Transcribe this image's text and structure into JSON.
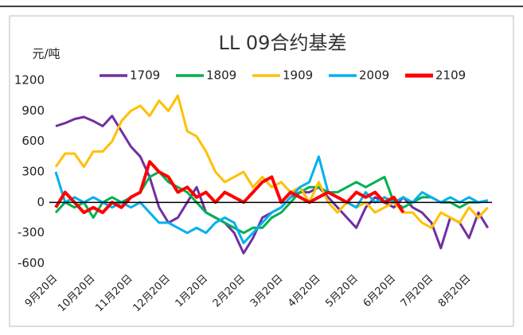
{
  "chart_data": {
    "type": "line",
    "title": "LL 09合约基差",
    "y_axis_label": "元/吨",
    "categories": [
      "9月20日",
      null,
      null,
      null,
      "10月20日",
      null,
      null,
      null,
      "11月20日",
      null,
      null,
      null,
      "12月20日",
      null,
      null,
      null,
      "1月20日",
      null,
      null,
      null,
      "2月20日",
      null,
      null,
      null,
      "3月20日",
      null,
      null,
      null,
      "4月20日",
      null,
      null,
      null,
      "5月20日",
      null,
      null,
      null,
      "6月20日",
      null,
      null,
      null,
      "7月20日",
      null,
      null,
      null,
      "8月20日",
      null,
      null
    ],
    "ylim": [
      -600,
      1200
    ],
    "yticks": [
      -600,
      -300,
      0,
      300,
      600,
      900,
      1200
    ],
    "grid": false,
    "legend": "top",
    "series": [
      {
        "name": "1709",
        "color": "#7030a0",
        "values": [
          750,
          780,
          820,
          840,
          800,
          750,
          850,
          700,
          550,
          450,
          250,
          -50,
          -200,
          -150,
          0,
          150,
          -100,
          -150,
          -200,
          -300,
          -500,
          -350,
          -150,
          -100,
          -50,
          50,
          100,
          100,
          150,
          50,
          -50,
          -150,
          -250,
          -50,
          50,
          0,
          -50,
          50,
          -50,
          -100,
          -200,
          -450,
          -150,
          -200,
          -350,
          -100,
          -250
        ]
      },
      {
        "name": "1809",
        "color": "#00b050",
        "values": [
          -100,
          0,
          -50,
          0,
          -150,
          0,
          50,
          0,
          50,
          100,
          250,
          300,
          200,
          150,
          100,
          0,
          -100,
          -150,
          -200,
          -250,
          -300,
          -250,
          -250,
          -150,
          -100,
          0,
          100,
          150,
          150,
          100,
          100,
          150,
          200,
          150,
          200,
          250,
          0,
          -50,
          0,
          50,
          50,
          0,
          0,
          -50,
          0,
          0,
          20
        ]
      },
      {
        "name": "1909",
        "color": "#ffc000",
        "values": [
          350,
          480,
          480,
          350,
          500,
          500,
          600,
          800,
          900,
          950,
          850,
          1000,
          900,
          1050,
          700,
          650,
          500,
          300,
          200,
          250,
          300,
          150,
          250,
          150,
          200,
          100,
          150,
          0,
          200,
          0,
          -100,
          0,
          -50,
          0,
          -100,
          -50,
          0,
          -100,
          -100,
          -200,
          -250,
          -100,
          -150,
          -200,
          -50,
          -150,
          -50
        ]
      },
      {
        "name": "2009",
        "color": "#00b0f0",
        "values": [
          300,
          0,
          50,
          0,
          50,
          0,
          -50,
          0,
          -50,
          0,
          -100,
          -200,
          -200,
          -250,
          -300,
          -250,
          -300,
          -200,
          -150,
          -200,
          -400,
          -300,
          -200,
          -100,
          -50,
          50,
          150,
          200,
          450,
          100,
          50,
          0,
          -50,
          100,
          0,
          50,
          0,
          50,
          0,
          100,
          50,
          0,
          50,
          0,
          50,
          0,
          20
        ]
      },
      {
        "name": "2109",
        "color": "#ff0000",
        "values": [
          -50,
          100,
          0,
          -100,
          -50,
          -100,
          0,
          -50,
          50,
          100,
          400,
          300,
          250,
          100,
          150,
          50,
          100,
          0,
          100,
          50,
          0,
          100,
          200,
          250,
          0,
          100,
          50,
          0,
          50,
          100,
          50,
          0,
          100,
          50,
          100,
          0,
          50,
          -100,
          null,
          null,
          null,
          null,
          null,
          null,
          null,
          null,
          null
        ]
      }
    ]
  }
}
